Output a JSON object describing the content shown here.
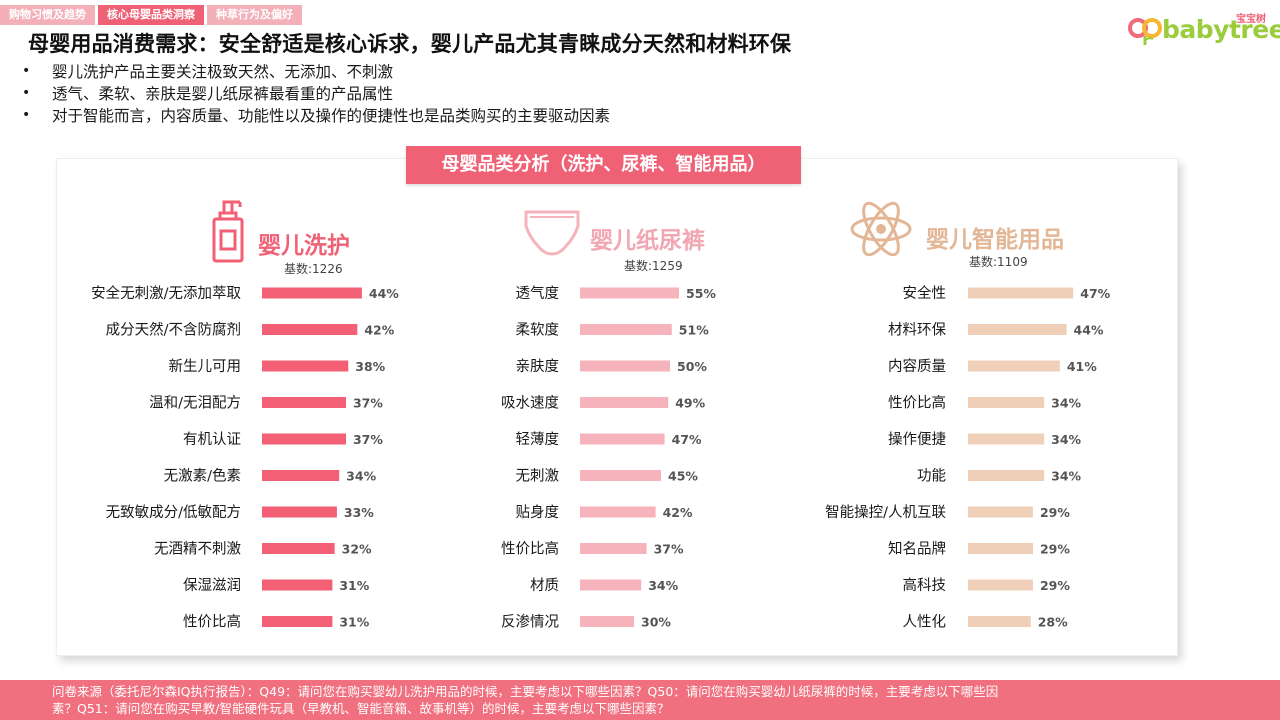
{
  "tabs": [
    {
      "label": "购物习惯及趋势",
      "active": false
    },
    {
      "label": "核心母婴品类洞察",
      "active": true
    },
    {
      "label": "种草行为及偏好",
      "active": false
    }
  ],
  "logo": {
    "text": "babytree",
    "cn": "宝宝树"
  },
  "headline": "母婴用品消费需求：安全舒适是核心诉求，婴儿产品尤其青睐成分天然和材料环保",
  "bullets": [
    "婴儿洗护产品主要关注极致天然、无添加、不刺激",
    "透气、柔软、亲肤是婴儿纸尿裤最看重的产品属性",
    "对于智能而言，内容质量、功能性以及操作的便捷性也是品类购买的主要驱动因素"
  ],
  "bullet_symbol": "•",
  "panel_title": "母婴品类分析（洗护、尿裤、智能用品）",
  "colors": {
    "care": "#f35f74",
    "diaper": "#f6b3bc",
    "smart": "#efcfb8",
    "care_title": "#ef6276",
    "diaper_title": "#f2a6b1",
    "smart_title": "#e3b796"
  },
  "chart_data": [
    {
      "type": "bar",
      "title": "婴儿洗护",
      "base_label": "基数:1226",
      "icon": "lotion-bottle-icon",
      "color": "#f35f74",
      "categories": [
        "安全无刺激/无添加萃取",
        "成分天然/不含防腐剂",
        "新生儿可用",
        "温和/无泪配方",
        "有机认证",
        "无激素/色素",
        "无致敏成分/低敏配方",
        "无酒精不刺激",
        "保湿滋润",
        "性价比高"
      ],
      "values": [
        44,
        42,
        38,
        37,
        37,
        34,
        33,
        32,
        31,
        31
      ],
      "labels": [
        "44%",
        "42%",
        "38%",
        "37%",
        "37%",
        "34%",
        "33%",
        "32%",
        "31%",
        "31%"
      ],
      "unit": "%"
    },
    {
      "type": "bar",
      "title": "婴儿纸尿裤",
      "base_label": "基数:1259",
      "icon": "diaper-icon",
      "color": "#f6b3bc",
      "categories": [
        "透气度",
        "柔软度",
        "亲肤度",
        "吸水速度",
        "轻薄度",
        "无刺激",
        "贴身度",
        "性价比高",
        "材质",
        "反渗情况"
      ],
      "values": [
        55,
        51,
        50,
        49,
        47,
        45,
        42,
        37,
        34,
        30
      ],
      "labels": [
        "55%",
        "51%",
        "50%",
        "49%",
        "47%",
        "45%",
        "42%",
        "37%",
        "34%",
        "30%"
      ],
      "unit": "%"
    },
    {
      "type": "bar",
      "title": "婴儿智能用品",
      "base_label": "基数:1109",
      "icon": "atom-icon",
      "color": "#efcfb8",
      "categories": [
        "安全性",
        "材料环保",
        "内容质量",
        "性价比高",
        "操作便捷",
        "功能",
        "智能操控/人机互联",
        "知名品牌",
        "高科技",
        "人性化"
      ],
      "values": [
        47,
        44,
        41,
        34,
        34,
        34,
        29,
        29,
        29,
        28
      ],
      "labels": [
        "47%",
        "44%",
        "41%",
        "34%",
        "34%",
        "34%",
        "29%",
        "29%",
        "29%",
        "28%"
      ],
      "unit": "%"
    }
  ],
  "footer": "问卷来源（委托尼尔森IQ执行报告）：Q49：请问您在购买婴幼儿洗护用品的时候，主要考虑以下哪些因素？Q50：请问您在购买婴幼儿纸尿裤的时候，主要考虑以下哪些因素？Q51：请问您在购买早教/智能硬件玩具（早教机、智能音箱、故事机等）的时候，主要考虑以下哪些因素？"
}
